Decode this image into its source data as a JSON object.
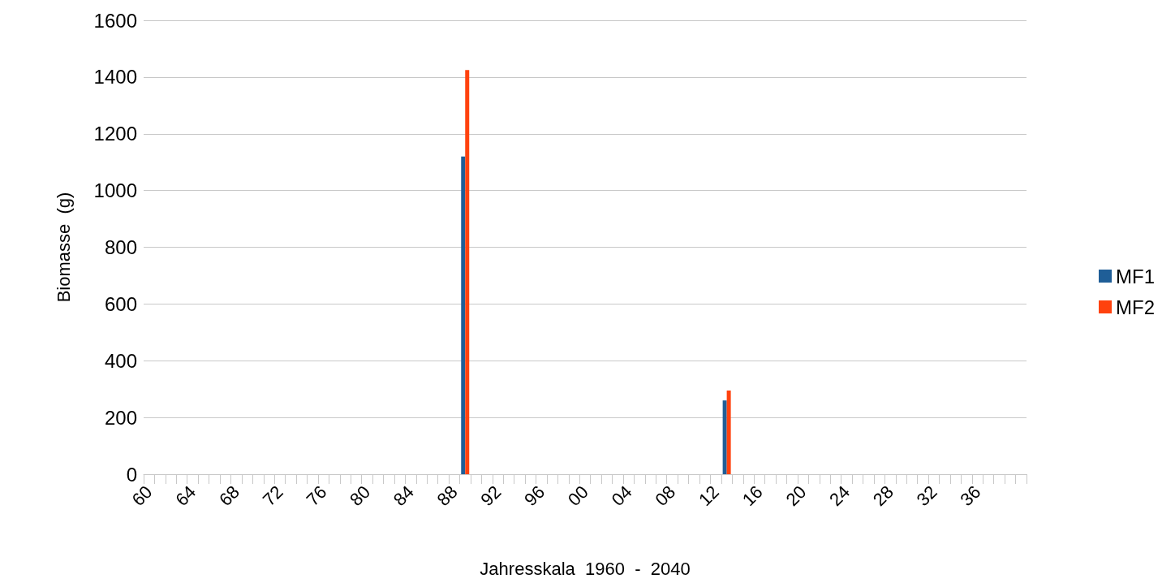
{
  "chart_data": {
    "type": "bar",
    "xlabel": "Jahresskala  1960  -  2040",
    "ylabel": "Biomasse  (g)",
    "categories": [
      "60",
      null,
      null,
      null,
      "64",
      null,
      null,
      null,
      "68",
      null,
      null,
      null,
      "72",
      null,
      null,
      null,
      "76",
      null,
      null,
      null,
      "80",
      null,
      null,
      null,
      "84",
      null,
      null,
      null,
      "88",
      null,
      null,
      null,
      "92",
      null,
      null,
      null,
      "96",
      null,
      null,
      null,
      "00",
      null,
      null,
      null,
      "04",
      null,
      null,
      null,
      "08",
      null,
      null,
      null,
      "12",
      null,
      null,
      null,
      "16",
      null,
      null,
      null,
      "20",
      null,
      null,
      null,
      "24",
      null,
      null,
      null,
      "28",
      null,
      null,
      null,
      "32",
      null,
      null,
      null,
      "36",
      null,
      null,
      null,
      null
    ],
    "series": [
      {
        "name": "MF1",
        "color": "#1f5e97",
        "values": [
          null,
          null,
          null,
          null,
          null,
          null,
          null,
          null,
          null,
          null,
          null,
          null,
          null,
          null,
          null,
          null,
          null,
          null,
          null,
          null,
          null,
          null,
          null,
          null,
          null,
          null,
          null,
          null,
          null,
          1120,
          null,
          null,
          null,
          null,
          null,
          null,
          null,
          null,
          null,
          null,
          null,
          null,
          null,
          null,
          null,
          null,
          null,
          null,
          null,
          null,
          null,
          null,
          null,
          260,
          null,
          null,
          null,
          null,
          null,
          null,
          null,
          null,
          null,
          null,
          null,
          null,
          null,
          null,
          null,
          null,
          null,
          null,
          null,
          null,
          null,
          null,
          null,
          null,
          null,
          null,
          null
        ]
      },
      {
        "name": "MF2",
        "color": "#ff420e",
        "values": [
          null,
          null,
          null,
          null,
          null,
          null,
          null,
          null,
          null,
          null,
          null,
          null,
          null,
          null,
          null,
          null,
          null,
          null,
          null,
          null,
          null,
          null,
          null,
          null,
          null,
          null,
          null,
          null,
          null,
          1425,
          null,
          null,
          null,
          null,
          null,
          null,
          null,
          null,
          null,
          null,
          null,
          null,
          null,
          null,
          null,
          null,
          null,
          null,
          null,
          null,
          null,
          null,
          null,
          295,
          null,
          null,
          null,
          null,
          null,
          null,
          null,
          null,
          null,
          null,
          null,
          null,
          null,
          null,
          null,
          null,
          null,
          null,
          null,
          null,
          null,
          null,
          null,
          null,
          null,
          null,
          null
        ]
      }
    ],
    "ylim": [
      0,
      1600
    ],
    "yticks": [
      0,
      200,
      400,
      600,
      800,
      1000,
      1200,
      1400,
      1600
    ],
    "grid": "y",
    "legend": "right"
  }
}
